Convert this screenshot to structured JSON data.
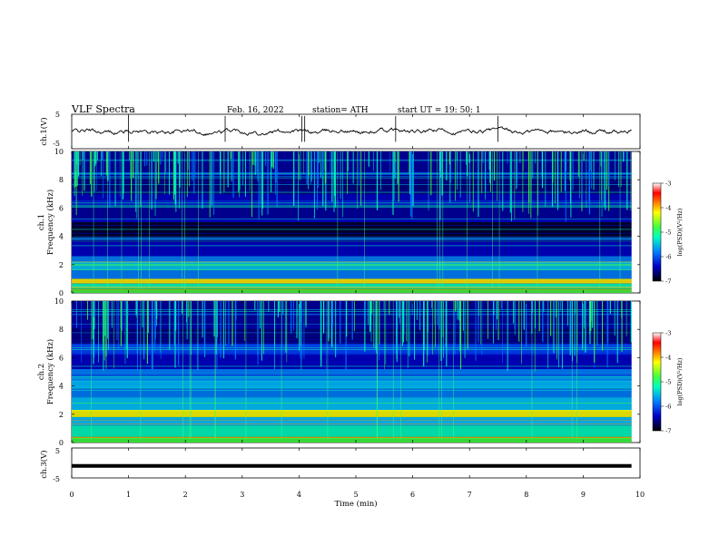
{
  "header": {
    "title": "VLF  Spectra",
    "date": "Feb. 16, 2022",
    "station": "station= ATH",
    "start": "start  UT  =    19: 50: 1"
  },
  "chart_data": [
    {
      "type": "line",
      "id": "ch1",
      "ylabel": "ch.1(V)",
      "ylim": [
        -5,
        5
      ],
      "yticks": [
        "5",
        "-5"
      ],
      "x_range": [
        0,
        9.85
      ],
      "description_values": {
        "baseline": 0.0,
        "spike_times": [
          1.0,
          2.7,
          4.05,
          4.1,
          5.7,
          7.5
        ]
      }
    },
    {
      "type": "heatmap",
      "id": "spec1",
      "ylabel": "ch.1\nFrequency (kHz)",
      "ylabel_top": "ch.1",
      "ylabel_bottom": "Frequency (kHz)",
      "ylim": [
        0,
        10
      ],
      "yticks": [
        "0",
        "2",
        "4",
        "6",
        "8",
        "10"
      ],
      "colorbar": {
        "label": "log(PSD)(V²/Hz)",
        "range": [
          -7,
          -3
        ],
        "ticks": [
          "-3",
          "-4",
          "-5",
          "-6",
          "-7"
        ]
      }
    },
    {
      "type": "heatmap",
      "id": "spec2",
      "ylabel_top": "ch.2",
      "ylabel_bottom": "Frequency (kHz)",
      "ylim": [
        0,
        10
      ],
      "yticks": [
        "0",
        "2",
        "4",
        "6",
        "8",
        "10"
      ],
      "colorbar": {
        "label": "log(PSD)(V²/Hz)",
        "range": [
          -7,
          -3
        ],
        "ticks": [
          "-3",
          "-4",
          "-5",
          "-6",
          "-7"
        ]
      }
    },
    {
      "type": "line",
      "id": "ch3",
      "ylabel": "ch.3(V)",
      "ylim": [
        -5,
        5
      ],
      "yticks": [
        "5",
        "-5"
      ],
      "x_range": [
        0,
        9.85
      ],
      "description_values": {
        "level": -1.0
      }
    }
  ],
  "x_axis": {
    "label": "Time  (min)",
    "xlim": [
      0,
      10
    ],
    "ticks": [
      "0",
      "1",
      "2",
      "3",
      "4",
      "5",
      "6",
      "7",
      "8",
      "9",
      "10"
    ]
  },
  "colors": {
    "spectrum_bg": "#000040",
    "trace": "#000000",
    "colormap": [
      "#000000",
      "#0000c8",
      "#0080ff",
      "#00ffc0",
      "#40ff40",
      "#ffff00",
      "#ff8000",
      "#ff0000",
      "#ffffff"
    ]
  }
}
